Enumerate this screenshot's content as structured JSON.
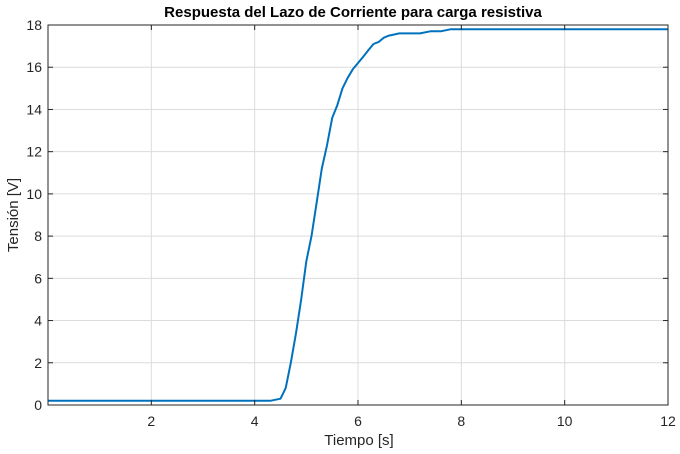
{
  "chart_data": {
    "type": "line",
    "title": "Respuesta del Lazo de Corriente para carga resistiva",
    "xlabel": "Tiempo [s]",
    "ylabel": "Tensión [V]",
    "xlim": [
      0,
      12
    ],
    "ylim": [
      0,
      18
    ],
    "xticks": [
      2,
      4,
      6,
      8,
      10,
      12
    ],
    "yticks": [
      0,
      2,
      4,
      6,
      8,
      10,
      12,
      14,
      16,
      18
    ],
    "grid": true,
    "legend": "none",
    "colors": {
      "series": "#0072BD",
      "grid": "#dcdcdc",
      "axes": "#262626"
    },
    "series": [
      {
        "x": [
          0,
          0.5,
          1,
          1.5,
          2,
          2.5,
          3,
          3.5,
          4,
          4.3,
          4.5,
          4.6,
          4.7,
          4.8,
          4.9,
          5.0,
          5.1,
          5.2,
          5.3,
          5.4,
          5.5,
          5.6,
          5.7,
          5.8,
          5.9,
          6.0,
          6.1,
          6.2,
          6.3,
          6.4,
          6.5,
          6.6,
          6.8,
          7.0,
          7.2,
          7.4,
          7.6,
          7.8,
          8.0,
          8.5,
          9.0,
          10.0,
          11.0,
          12.0
        ],
        "y": [
          0.2,
          0.2,
          0.2,
          0.2,
          0.2,
          0.2,
          0.2,
          0.2,
          0.2,
          0.2,
          0.3,
          0.8,
          2.0,
          3.4,
          5.0,
          6.8,
          8.0,
          9.6,
          11.2,
          12.3,
          13.6,
          14.2,
          15.0,
          15.5,
          15.9,
          16.2,
          16.5,
          16.8,
          17.1,
          17.2,
          17.4,
          17.5,
          17.6,
          17.6,
          17.6,
          17.7,
          17.7,
          17.8,
          17.8,
          17.8,
          17.8,
          17.8,
          17.8,
          17.8
        ]
      }
    ]
  }
}
